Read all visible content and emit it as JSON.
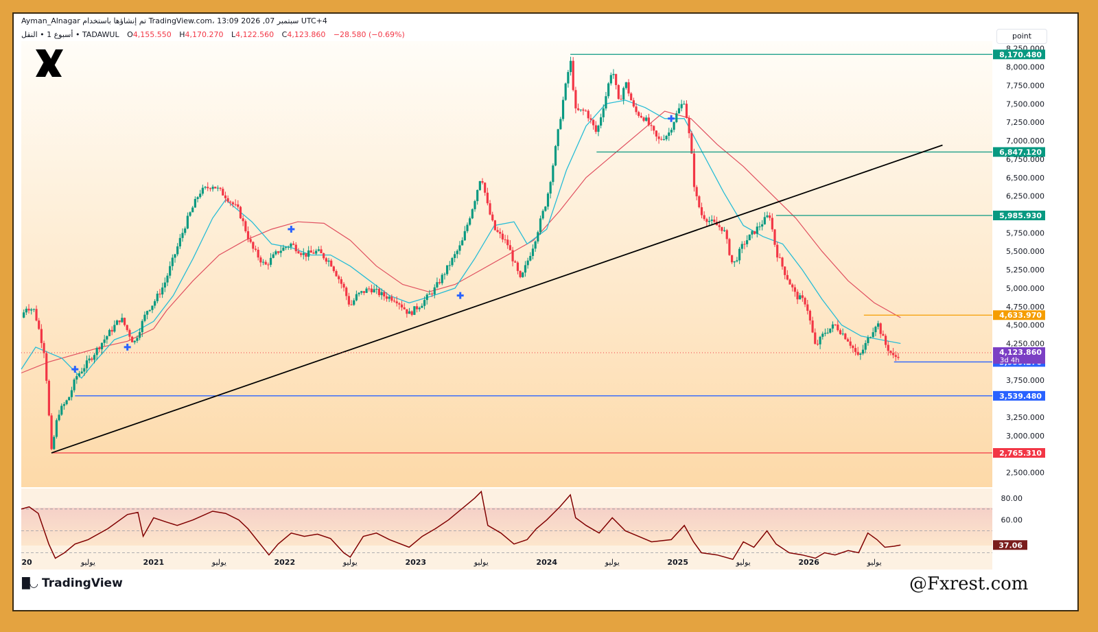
{
  "header": {
    "line1": "Ayman_Alnagar تم إنشاؤها باستخدام TradingView.com، 13:09 2026 ,07 سبتمبر UTC+4",
    "symbol": "أسبوع 1 • النقل • TADAWUL",
    "open_label": "O",
    "open": "4,155.550",
    "high_label": "H",
    "high": "4,170.270",
    "low_label": "L",
    "low": "4,122.560",
    "close_label": "C",
    "close": "4,123.860",
    "change": "−28.580 (−0.69%)"
  },
  "point_button": "point",
  "brand": {
    "tv": "TradingView",
    "credit": "@Fxrest.com"
  },
  "colors": {
    "frame": "#e4a340",
    "up": "#089981",
    "down": "#f23645",
    "ma_fast": "#26bcd6",
    "ma_slow": "#e04f5f",
    "trend": "#000000",
    "level_green": "#089981",
    "level_blue": "#2962ff",
    "level_red": "#f23645",
    "level_orange": "#f59d00",
    "rsi": "#800000"
  },
  "chart_data": {
    "type": "candlestick",
    "timeframe": "1W",
    "symbol": "TADAWUL",
    "x_labels": [
      "20",
      "يوليو",
      "2021",
      "يوليو",
      "2022",
      "يوليو",
      "2023",
      "يوليو",
      "2024",
      "يوليو",
      "2025",
      "يوليو",
      "2026",
      "يوليو"
    ],
    "x_label_positions": [
      2020.0,
      2020.5,
      2021.0,
      2021.5,
      2022.0,
      2022.5,
      2023.0,
      2023.5,
      2024.0,
      2024.5,
      2025.0,
      2025.5,
      2026.0,
      2026.5
    ],
    "x_range": [
      2019.99,
      2027.4
    ],
    "y_range": [
      2300,
      8350
    ],
    "y_ticks": [
      "8,250.000",
      "8,000.000",
      "7,750.000",
      "7,500.000",
      "7,250.000",
      "7,000.000",
      "6,750.000",
      "6,500.000",
      "6,250.000",
      "5,750.000",
      "5,500.000",
      "5,250.000",
      "5,000.000",
      "4,750.000",
      "4,500.000",
      "4,250.000",
      "3,750.000",
      "3,250.000",
      "3,000.000",
      "2,500.000"
    ],
    "y_tick_values": [
      8250,
      8000,
      7750,
      7500,
      7250,
      7000,
      6750,
      6500,
      6250,
      5750,
      5500,
      5250,
      5000,
      4750,
      4500,
      4250,
      3750,
      3250,
      3000,
      2500
    ],
    "price_path": [
      [
        2019.99,
        4600
      ],
      [
        2020.03,
        4750
      ],
      [
        2020.09,
        4700
      ],
      [
        2020.17,
        4100
      ],
      [
        2020.22,
        2765
      ],
      [
        2020.27,
        3300
      ],
      [
        2020.35,
        3500
      ],
      [
        2020.41,
        3800
      ],
      [
        2020.5,
        4000
      ],
      [
        2020.6,
        4250
      ],
      [
        2020.75,
        4600
      ],
      [
        2020.85,
        4250
      ],
      [
        2020.95,
        4700
      ],
      [
        2021.0,
        4800
      ],
      [
        2021.08,
        5050
      ],
      [
        2021.15,
        5400
      ],
      [
        2021.25,
        5900
      ],
      [
        2021.35,
        6300
      ],
      [
        2021.45,
        6400
      ],
      [
        2021.55,
        6250
      ],
      [
        2021.65,
        6050
      ],
      [
        2021.75,
        5550
      ],
      [
        2021.85,
        5300
      ],
      [
        2021.95,
        5500
      ],
      [
        2022.05,
        5600
      ],
      [
        2022.15,
        5450
      ],
      [
        2022.25,
        5500
      ],
      [
        2022.35,
        5350
      ],
      [
        2022.45,
        5000
      ],
      [
        2022.5,
        4750
      ],
      [
        2022.55,
        4900
      ],
      [
        2022.65,
        5000
      ],
      [
        2022.75,
        4900
      ],
      [
        2022.85,
        4850
      ],
      [
        2022.95,
        4650
      ],
      [
        2023.05,
        4800
      ],
      [
        2023.15,
        5000
      ],
      [
        2023.25,
        5300
      ],
      [
        2023.35,
        5600
      ],
      [
        2023.45,
        6200
      ],
      [
        2023.5,
        6550
      ],
      [
        2023.55,
        6100
      ],
      [
        2023.6,
        5800
      ],
      [
        2023.7,
        5600
      ],
      [
        2023.8,
        5100
      ],
      [
        2023.9,
        5600
      ],
      [
        2024.0,
        6200
      ],
      [
        2024.05,
        6700
      ],
      [
        2024.12,
        7500
      ],
      [
        2024.18,
        8100
      ],
      [
        2024.22,
        7400
      ],
      [
        2024.3,
        7400
      ],
      [
        2024.38,
        7100
      ],
      [
        2024.45,
        7600
      ],
      [
        2024.5,
        8000
      ],
      [
        2024.55,
        7500
      ],
      [
        2024.6,
        7800
      ],
      [
        2024.67,
        7400
      ],
      [
        2024.75,
        7300
      ],
      [
        2024.85,
        7000
      ],
      [
        2024.93,
        7100
      ],
      [
        2025.0,
        7400
      ],
      [
        2025.05,
        7550
      ],
      [
        2025.1,
        6900
      ],
      [
        2025.13,
        6300
      ],
      [
        2025.18,
        6000
      ],
      [
        2025.25,
        5900
      ],
      [
        2025.35,
        5800
      ],
      [
        2025.42,
        5300
      ],
      [
        2025.5,
        5600
      ],
      [
        2025.55,
        5700
      ],
      [
        2025.65,
        5900
      ],
      [
        2025.7,
        6000
      ],
      [
        2025.75,
        5500
      ],
      [
        2025.82,
        5200
      ],
      [
        2025.9,
        4900
      ],
      [
        2025.98,
        4800
      ],
      [
        2026.05,
        4200
      ],
      [
        2026.12,
        4400
      ],
      [
        2026.2,
        4500
      ],
      [
        2026.3,
        4300
      ],
      [
        2026.38,
        4050
      ],
      [
        2026.45,
        4300
      ],
      [
        2026.52,
        4550
      ],
      [
        2026.58,
        4250
      ],
      [
        2026.65,
        4050
      ],
      [
        2026.7,
        4124
      ]
    ],
    "ma_fast_path": [
      [
        2019.99,
        3900
      ],
      [
        2020.1,
        4200
      ],
      [
        2020.3,
        4050
      ],
      [
        2020.45,
        3780
      ],
      [
        2020.55,
        4000
      ],
      [
        2020.7,
        4300
      ],
      [
        2020.85,
        4400
      ],
      [
        2021.0,
        4550
      ],
      [
        2021.15,
        4900
      ],
      [
        2021.3,
        5400
      ],
      [
        2021.45,
        5950
      ],
      [
        2021.55,
        6200
      ],
      [
        2021.65,
        6050
      ],
      [
        2021.75,
        5900
      ],
      [
        2021.9,
        5600
      ],
      [
        2022.05,
        5550
      ],
      [
        2022.2,
        5450
      ],
      [
        2022.35,
        5450
      ],
      [
        2022.5,
        5300
      ],
      [
        2022.65,
        5100
      ],
      [
        2022.8,
        4900
      ],
      [
        2022.95,
        4800
      ],
      [
        2023.1,
        4880
      ],
      [
        2023.3,
        5000
      ],
      [
        2023.45,
        5400
      ],
      [
        2023.6,
        5850
      ],
      [
        2023.75,
        5900
      ],
      [
        2023.85,
        5600
      ],
      [
        2024.0,
        5800
      ],
      [
        2024.15,
        6600
      ],
      [
        2024.3,
        7200
      ],
      [
        2024.45,
        7500
      ],
      [
        2024.6,
        7550
      ],
      [
        2024.75,
        7450
      ],
      [
        2024.9,
        7300
      ],
      [
        2025.05,
        7300
      ],
      [
        2025.2,
        6800
      ],
      [
        2025.35,
        6300
      ],
      [
        2025.5,
        5850
      ],
      [
        2025.65,
        5700
      ],
      [
        2025.8,
        5600
      ],
      [
        2025.95,
        5250
      ],
      [
        2026.1,
        4850
      ],
      [
        2026.25,
        4500
      ],
      [
        2026.4,
        4350
      ],
      [
        2026.55,
        4300
      ],
      [
        2026.7,
        4250
      ]
    ],
    "ma_slow_path": [
      [
        2019.99,
        3850
      ],
      [
        2020.2,
        4000
      ],
      [
        2020.4,
        4100
      ],
      [
        2020.6,
        4200
      ],
      [
        2020.8,
        4280
      ],
      [
        2021.0,
        4450
      ],
      [
        2021.1,
        4700
      ],
      [
        2021.3,
        5100
      ],
      [
        2021.5,
        5450
      ],
      [
        2021.7,
        5650
      ],
      [
        2021.9,
        5800
      ],
      [
        2022.1,
        5900
      ],
      [
        2022.3,
        5880
      ],
      [
        2022.5,
        5650
      ],
      [
        2022.7,
        5300
      ],
      [
        2022.9,
        5050
      ],
      [
        2023.1,
        4950
      ],
      [
        2023.3,
        5050
      ],
      [
        2023.5,
        5250
      ],
      [
        2023.7,
        5450
      ],
      [
        2023.9,
        5650
      ],
      [
        2024.1,
        6050
      ],
      [
        2024.3,
        6500
      ],
      [
        2024.5,
        6800
      ],
      [
        2024.7,
        7100
      ],
      [
        2024.9,
        7400
      ],
      [
        2025.1,
        7300
      ],
      [
        2025.3,
        6950
      ],
      [
        2025.5,
        6650
      ],
      [
        2025.7,
        6300
      ],
      [
        2025.9,
        5950
      ],
      [
        2026.1,
        5500
      ],
      [
        2026.3,
        5100
      ],
      [
        2026.5,
        4800
      ],
      [
        2026.7,
        4600
      ]
    ],
    "trendline": [
      [
        2020.22,
        2765
      ],
      [
        2027.02,
        6940
      ]
    ],
    "levels": [
      {
        "value": 8170.48,
        "label": "8,170.480",
        "color": "#089981",
        "x_start": 2024.18
      },
      {
        "value": 6847.12,
        "label": "6,847.120",
        "color": "#089981",
        "x_start": 2024.38
      },
      {
        "value": 5985.93,
        "label": "5,985.930",
        "color": "#089981",
        "x_start": 2025.75
      },
      {
        "value": 4633.97,
        "label": "4,633.970",
        "color": "#f59d00",
        "x_start": 2026.42
      },
      {
        "value": 3999.27,
        "label": "3,999.270",
        "color": "#2962ff",
        "x_start": 2026.65
      },
      {
        "value": 3539.48,
        "label": "3,539.480",
        "color": "#2962ff",
        "x_start": 2020.4
      },
      {
        "value": 2765.31,
        "label": "2,765.310",
        "color": "#f23645",
        "x_start": 2020.22
      }
    ],
    "current_price": {
      "value": 4123.86,
      "label": "4,123.860",
      "countdown": "3d 4h"
    },
    "signal_markers": [
      [
        2020.4,
        3900
      ],
      [
        2020.8,
        4200
      ],
      [
        2022.05,
        5800
      ],
      [
        2023.34,
        4900
      ],
      [
        2024.95,
        7300
      ]
    ],
    "rsi": {
      "value": 37.06,
      "label": "37.06",
      "y_ticks": [
        "80.00",
        "60.00"
      ],
      "y_tick_values": [
        80,
        60
      ],
      "overbought": 70,
      "oversold": 30,
      "series": [
        [
          2019.99,
          70
        ],
        [
          2020.05,
          72
        ],
        [
          2020.12,
          66
        ],
        [
          2020.2,
          38
        ],
        [
          2020.25,
          25
        ],
        [
          2020.32,
          30
        ],
        [
          2020.4,
          38
        ],
        [
          2020.5,
          42
        ],
        [
          2020.65,
          52
        ],
        [
          2020.8,
          65
        ],
        [
          2020.88,
          67
        ],
        [
          2020.92,
          45
        ],
        [
          2021.0,
          62
        ],
        [
          2021.1,
          58
        ],
        [
          2021.18,
          55
        ],
        [
          2021.3,
          60
        ],
        [
          2021.45,
          68
        ],
        [
          2021.55,
          66
        ],
        [
          2021.65,
          60
        ],
        [
          2021.72,
          52
        ],
        [
          2021.8,
          40
        ],
        [
          2021.88,
          28
        ],
        [
          2021.95,
          38
        ],
        [
          2022.05,
          48
        ],
        [
          2022.15,
          45
        ],
        [
          2022.25,
          47
        ],
        [
          2022.35,
          43
        ],
        [
          2022.45,
          30
        ],
        [
          2022.5,
          26
        ],
        [
          2022.6,
          45
        ],
        [
          2022.7,
          48
        ],
        [
          2022.8,
          42
        ],
        [
          2022.95,
          35
        ],
        [
          2023.05,
          45
        ],
        [
          2023.15,
          52
        ],
        [
          2023.25,
          60
        ],
        [
          2023.35,
          70
        ],
        [
          2023.45,
          80
        ],
        [
          2023.5,
          86
        ],
        [
          2023.55,
          55
        ],
        [
          2023.65,
          48
        ],
        [
          2023.75,
          38
        ],
        [
          2023.85,
          42
        ],
        [
          2023.92,
          52
        ],
        [
          2024.0,
          60
        ],
        [
          2024.1,
          72
        ],
        [
          2024.18,
          83
        ],
        [
          2024.22,
          62
        ],
        [
          2024.3,
          55
        ],
        [
          2024.4,
          48
        ],
        [
          2024.5,
          62
        ],
        [
          2024.6,
          50
        ],
        [
          2024.7,
          45
        ],
        [
          2024.8,
          40
        ],
        [
          2024.95,
          42
        ],
        [
          2025.05,
          55
        ],
        [
          2025.12,
          40
        ],
        [
          2025.18,
          30
        ],
        [
          2025.3,
          28
        ],
        [
          2025.42,
          24
        ],
        [
          2025.5,
          40
        ],
        [
          2025.58,
          35
        ],
        [
          2025.68,
          50
        ],
        [
          2025.75,
          38
        ],
        [
          2025.85,
          30
        ],
        [
          2025.95,
          28
        ],
        [
          2026.05,
          25
        ],
        [
          2026.12,
          30
        ],
        [
          2026.2,
          28
        ],
        [
          2026.3,
          32
        ],
        [
          2026.38,
          30
        ],
        [
          2026.45,
          48
        ],
        [
          2026.52,
          42
        ],
        [
          2026.58,
          35
        ],
        [
          2026.65,
          36
        ],
        [
          2026.7,
          37.06
        ]
      ]
    }
  }
}
